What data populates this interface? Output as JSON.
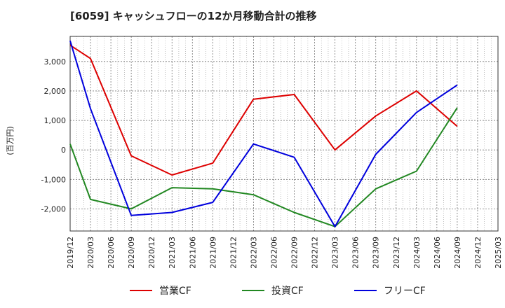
{
  "chart_data": {
    "type": "line",
    "title": "[6059]  キャッシュフローの12か月移動合計の推移",
    "xlabel": "",
    "ylabel": "(百万円)",
    "ylim": [
      -2750,
      3850
    ],
    "yticks": [
      -2000,
      -1000,
      0,
      1000,
      2000,
      3000
    ],
    "ytick_labels": [
      "-2,000",
      "-1,000",
      "0",
      "1,000",
      "2,000",
      "3,000"
    ],
    "x_tick_labels": [
      "2019/12",
      "2020/03",
      "2020/06",
      "2020/09",
      "2020/12",
      "2021/03",
      "2021/06",
      "2021/09",
      "2021/12",
      "2022/03",
      "2022/06",
      "2022/09",
      "2022/12",
      "2023/03",
      "2023/06",
      "2023/09",
      "2023/12",
      "2024/03",
      "2024/06",
      "2024/09",
      "2024/12",
      "2025/03"
    ],
    "grid": true,
    "legend_position": "bottom-center",
    "series": [
      {
        "name": "営業CF",
        "color": "#dd0000",
        "points": [
          [
            0,
            3550
          ],
          [
            1,
            3100
          ],
          [
            3,
            -200
          ],
          [
            5,
            -850
          ],
          [
            7,
            -450
          ],
          [
            9,
            1720
          ],
          [
            11,
            1880
          ],
          [
            13,
            0
          ],
          [
            15,
            1150
          ],
          [
            17,
            2000
          ],
          [
            19,
            800
          ]
        ]
      },
      {
        "name": "投資CF",
        "color": "#228822",
        "points": [
          [
            0,
            200
          ],
          [
            1,
            -1680
          ],
          [
            3,
            -2000
          ],
          [
            5,
            -1280
          ],
          [
            7,
            -1320
          ],
          [
            9,
            -1520
          ],
          [
            11,
            -2120
          ],
          [
            13,
            -2600
          ],
          [
            15,
            -1320
          ],
          [
            17,
            -720
          ],
          [
            19,
            1430
          ]
        ]
      },
      {
        "name": "フリーCF",
        "color": "#0000dd",
        "points": [
          [
            0,
            3700
          ],
          [
            1,
            1400
          ],
          [
            3,
            -2220
          ],
          [
            5,
            -2120
          ],
          [
            7,
            -1780
          ],
          [
            9,
            200
          ],
          [
            11,
            -250
          ],
          [
            13,
            -2600
          ],
          [
            15,
            -150
          ],
          [
            17,
            1270
          ],
          [
            19,
            2200
          ]
        ]
      }
    ]
  }
}
